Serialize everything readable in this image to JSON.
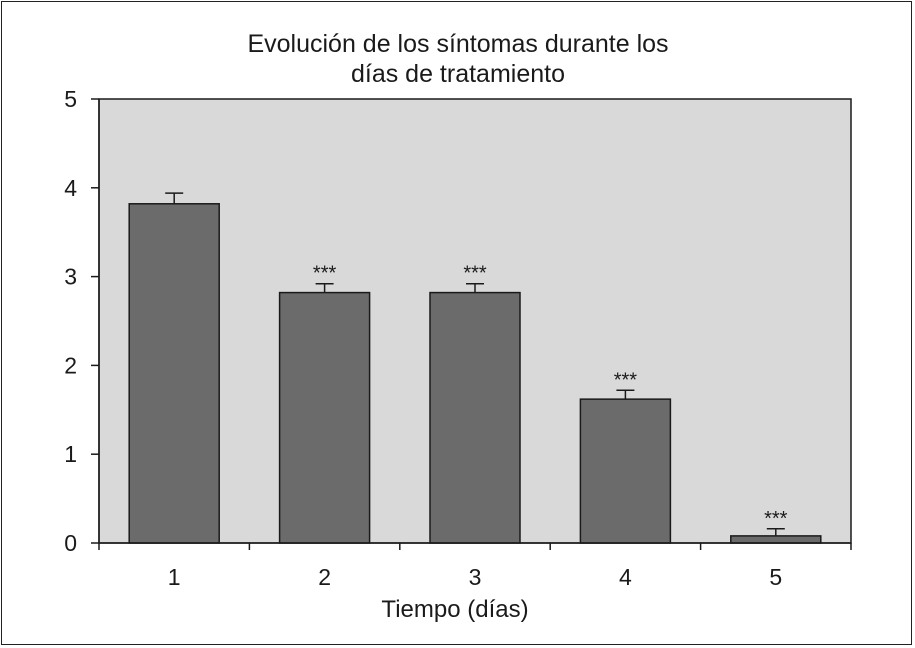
{
  "chart_data": {
    "type": "bar",
    "title_lines": [
      "Evolución de los síntomas durante los",
      "días de tratamiento"
    ],
    "xlabel": "Tiempo (días)",
    "ylabel": "",
    "categories": [
      "1",
      "2",
      "3",
      "4",
      "5"
    ],
    "values": [
      3.82,
      2.82,
      2.82,
      1.62,
      0.08
    ],
    "error_upper": [
      0.12,
      0.1,
      0.1,
      0.1,
      0.08
    ],
    "annotations": [
      "",
      "***",
      "***",
      "***",
      "***"
    ],
    "ylim": [
      0,
      5
    ],
    "yticks": [
      "0",
      "1",
      "2",
      "3",
      "4",
      "5"
    ],
    "grid": false,
    "colors": {
      "plot_background": "#d9d9d9",
      "bar_fill": "#6b6b6b",
      "bar_stroke": "#1a1a1a",
      "axis": "#1a1a1a"
    }
  }
}
